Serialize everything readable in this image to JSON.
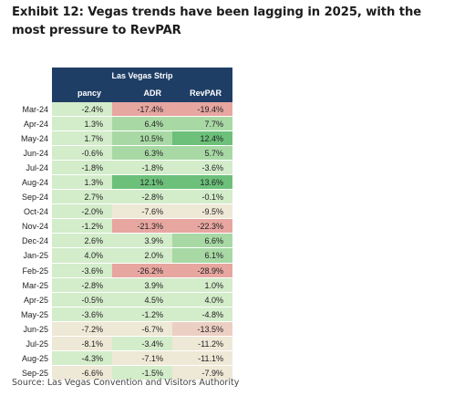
{
  "title": "Exhibit 12: Vegas trends have been lagging in 2025, with the most pressure to RevPAR",
  "table": {
    "group_header": "Las Vegas Strip",
    "columns": [
      "pancy",
      "ADR",
      "RevPAR"
    ],
    "rows": [
      {
        "label": "Mar-24",
        "values": [
          "-2.4%",
          "-17.4%",
          "-19.4%"
        ]
      },
      {
        "label": "Apr-24",
        "values": [
          "1.3%",
          "6.4%",
          "7.7%"
        ]
      },
      {
        "label": "May-24",
        "values": [
          "1.7%",
          "10.5%",
          "12.4%"
        ]
      },
      {
        "label": "Jun-24",
        "values": [
          "-0.6%",
          "6.3%",
          "5.7%"
        ]
      },
      {
        "label": "Jul-24",
        "values": [
          "-1.8%",
          "-1.8%",
          "-3.6%"
        ]
      },
      {
        "label": "Aug-24",
        "values": [
          "1.3%",
          "12.1%",
          "13.6%"
        ]
      },
      {
        "label": "Sep-24",
        "values": [
          "2.7%",
          "-2.8%",
          "-0.1%"
        ]
      },
      {
        "label": "Oct-24",
        "values": [
          "-2.0%",
          "-7.6%",
          "-9.5%"
        ]
      },
      {
        "label": "Nov-24",
        "values": [
          "-1.2%",
          "-21.3%",
          "-22.3%"
        ]
      },
      {
        "label": "Dec-24",
        "values": [
          "2.6%",
          "3.9%",
          "6.6%"
        ]
      },
      {
        "label": "Jan-25",
        "values": [
          "4.0%",
          "2.0%",
          "6.1%"
        ]
      },
      {
        "label": "Feb-25",
        "values": [
          "-3.6%",
          "-26.2%",
          "-28.9%"
        ]
      },
      {
        "label": "Mar-25",
        "values": [
          "-2.8%",
          "3.9%",
          "1.0%"
        ]
      },
      {
        "label": "Apr-25",
        "values": [
          "-0.5%",
          "4.5%",
          "4.0%"
        ]
      },
      {
        "label": "May-25",
        "values": [
          "-3.6%",
          "-1.2%",
          "-4.8%"
        ]
      },
      {
        "label": "Jun-25",
        "values": [
          "-7.2%",
          "-6.7%",
          "-13.5%"
        ]
      },
      {
        "label": "Jul-25",
        "values": [
          "-8.1%",
          "-3.4%",
          "-11.2%"
        ]
      },
      {
        "label": "Aug-25",
        "values": [
          "-4.3%",
          "-7.1%",
          "-11.1%"
        ]
      },
      {
        "label": "Sep-25",
        "values": [
          "-6.6%",
          "-1.5%",
          "-7.9%"
        ]
      }
    ]
  },
  "colors": {
    "header_bg": "#1f3e66",
    "strong_green": "#6cc07a",
    "mid_green": "#a8d9a5",
    "light_green": "#d3ecca",
    "pale_neutral": "#eee8d6",
    "light_red": "#eccfc3",
    "red": "#e7a6a0"
  },
  "source": "Source: Las Vegas Convention and Visitors Authority"
}
